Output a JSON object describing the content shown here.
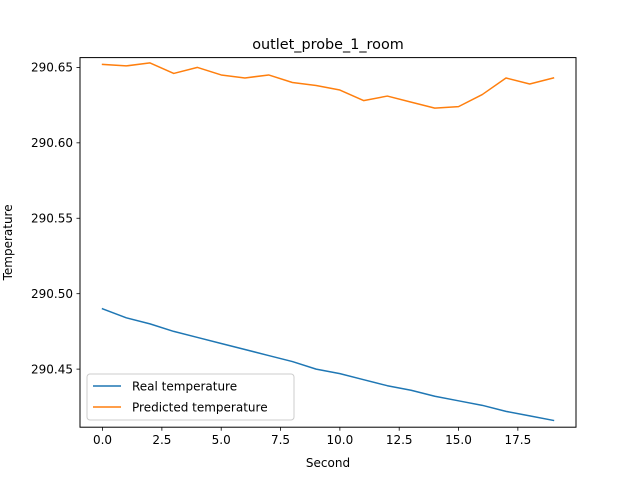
{
  "chart_data": {
    "type": "line",
    "title": "outlet_probe_1_room",
    "xlabel": "Second",
    "ylabel": "Temperature",
    "xlim": [
      -0.95,
      19.95
    ],
    "ylim": [
      290.4115,
      290.6565
    ],
    "xticks": [
      0.0,
      2.5,
      5.0,
      7.5,
      10.0,
      12.5,
      15.0,
      17.5
    ],
    "xtick_labels": [
      "0.0",
      "2.5",
      "5.0",
      "7.5",
      "10.0",
      "12.5",
      "15.0",
      "17.5"
    ],
    "yticks": [
      290.45,
      290.5,
      290.55,
      290.6,
      290.65
    ],
    "ytick_labels": [
      "290.45",
      "290.50",
      "290.55",
      "290.60",
      "290.65"
    ],
    "grid": false,
    "legend_position": "lower-left",
    "x": [
      0,
      1,
      2,
      3,
      4,
      5,
      6,
      7,
      8,
      9,
      10,
      11,
      12,
      13,
      14,
      15,
      16,
      17,
      18,
      19
    ],
    "series": [
      {
        "name": "Real temperature",
        "color": "#1f77b4",
        "values": [
          290.49,
          290.484,
          290.48,
          290.475,
          290.471,
          290.467,
          290.463,
          290.459,
          290.455,
          290.45,
          290.447,
          290.443,
          290.439,
          290.436,
          290.432,
          290.429,
          290.426,
          290.422,
          290.419,
          290.416
        ]
      },
      {
        "name": "Predicted temperature",
        "color": "#ff7f0e",
        "values": [
          290.652,
          290.651,
          290.653,
          290.646,
          290.65,
          290.645,
          290.643,
          290.645,
          290.64,
          290.638,
          290.635,
          290.628,
          290.631,
          290.627,
          290.623,
          290.624,
          290.632,
          290.643,
          290.639,
          290.643
        ]
      }
    ]
  }
}
